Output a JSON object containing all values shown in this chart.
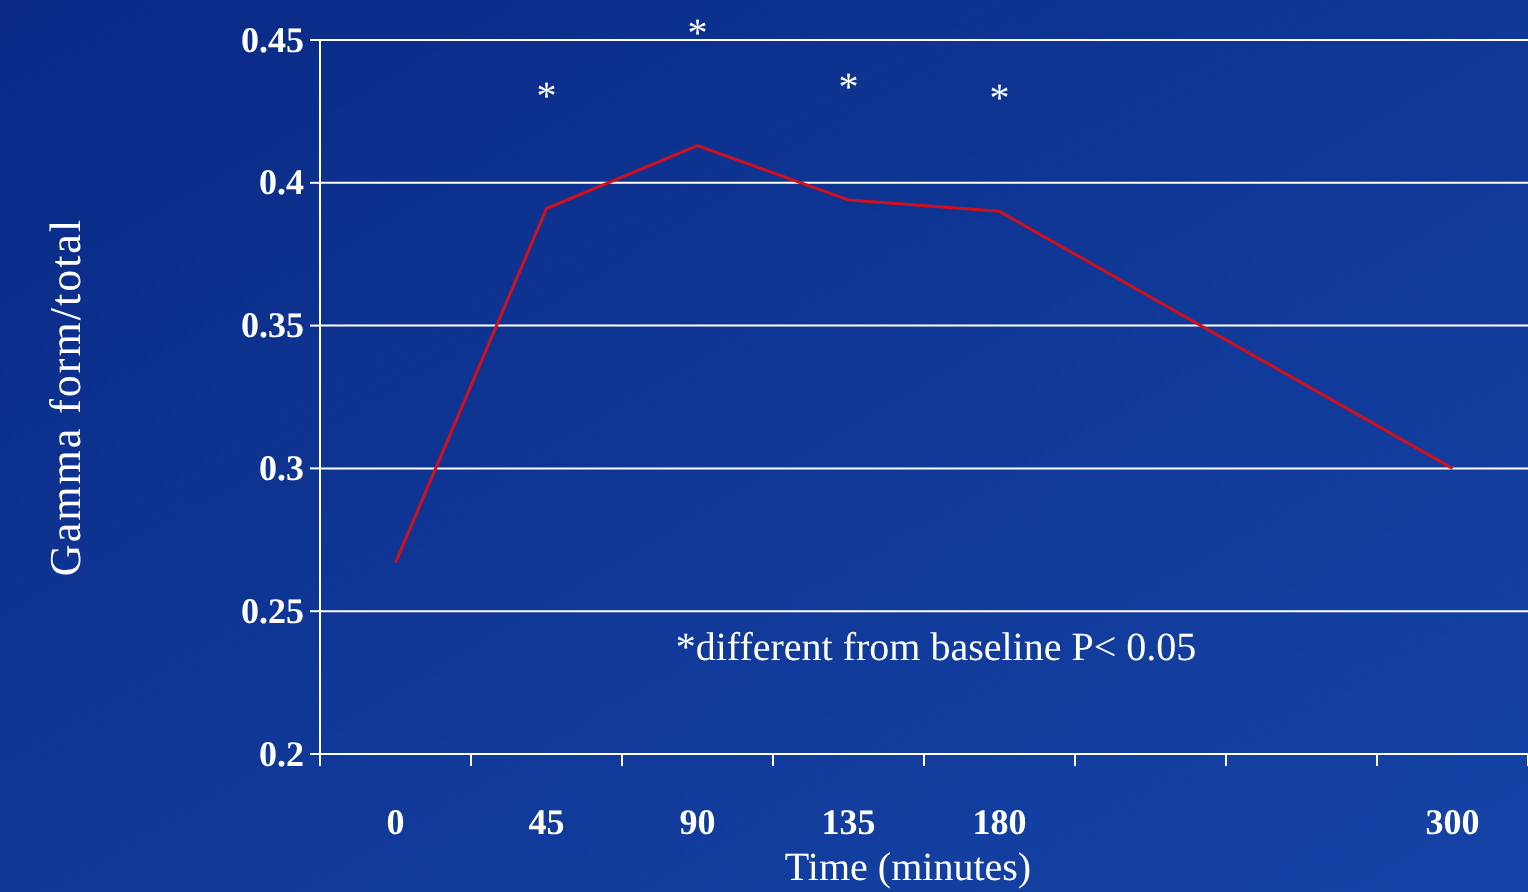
{
  "chart_data": {
    "type": "line",
    "xlabel": "Time (minutes)",
    "ylabel": "Gamma form/total",
    "categories": [
      "0",
      "45",
      "90",
      "135",
      "180",
      null,
      null,
      "300"
    ],
    "series": [
      {
        "color": "#d0101c",
        "values": [
          0.267,
          0.391,
          0.413,
          0.394,
          0.39,
          null,
          null,
          0.3
        ]
      }
    ],
    "ylim": [
      0.2,
      0.45
    ],
    "yticks": [
      0.2,
      0.25,
      0.3,
      0.35,
      0.4,
      0.45
    ],
    "grid": "y",
    "marker": "none",
    "line_style": "solid",
    "annotations": [
      "*",
      "*",
      "*",
      "*",
      "*different from baseline P< 0.05"
    ]
  }
}
